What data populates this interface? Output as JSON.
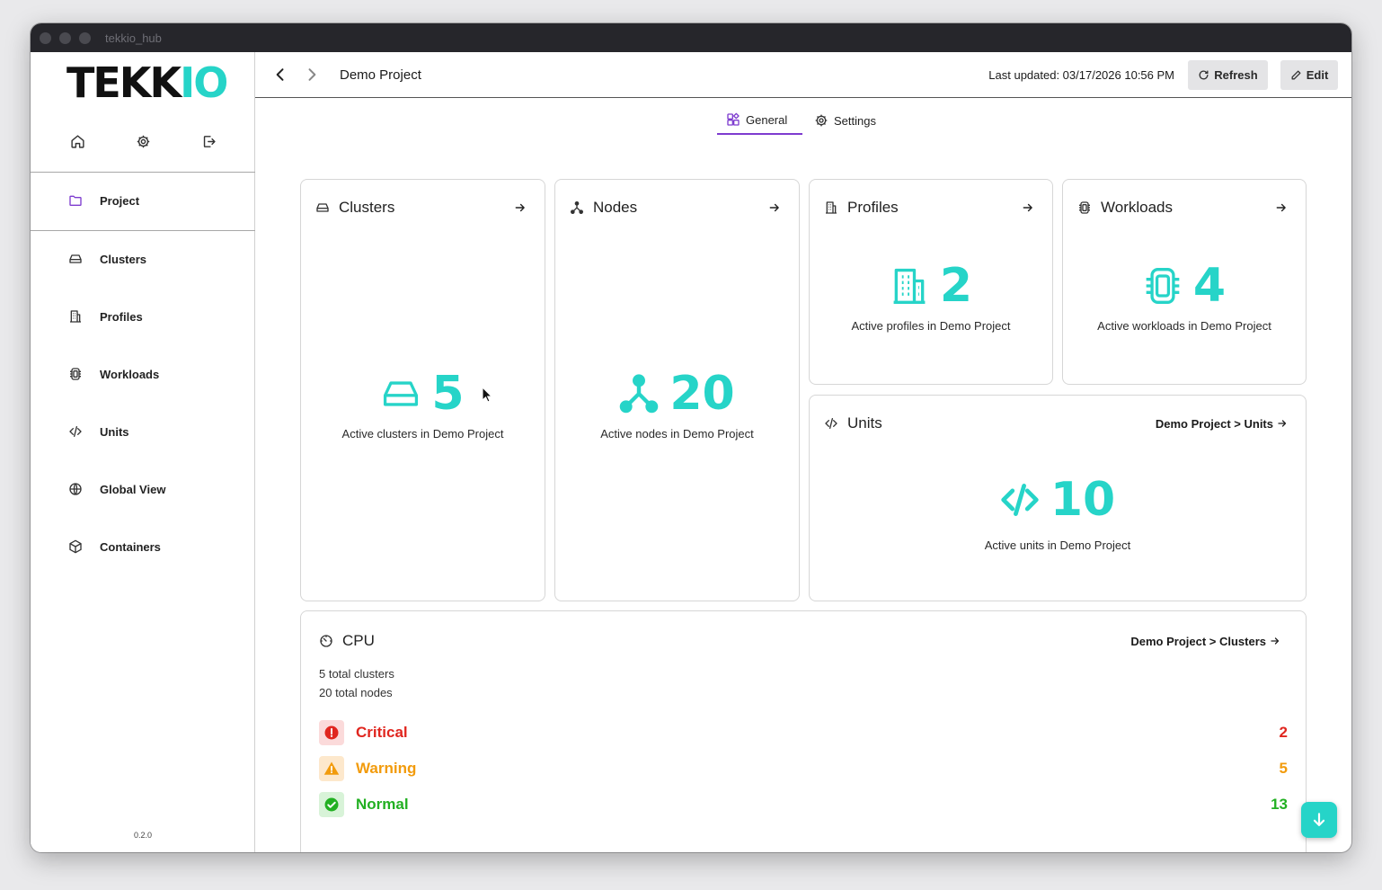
{
  "window": {
    "title": "tekkio_hub"
  },
  "sidebar": {
    "logo": {
      "dark": "TEKK",
      "teal": "IO"
    },
    "project_label": "Project",
    "items": [
      {
        "label": "Clusters",
        "icon": "hard-drive-icon"
      },
      {
        "label": "Profiles",
        "icon": "building-icon"
      },
      {
        "label": "Workloads",
        "icon": "cpu-chip-icon"
      },
      {
        "label": "Units",
        "icon": "code-icon"
      },
      {
        "label": "Global View",
        "icon": "globe-icon"
      },
      {
        "label": "Containers",
        "icon": "box-icon"
      }
    ],
    "version": "0.2.0"
  },
  "header": {
    "title": "Demo Project",
    "last_updated": "Last updated: 03/17/2026 10:56 PM",
    "refresh_label": "Refresh",
    "edit_label": "Edit"
  },
  "tabs": {
    "general": "General",
    "settings": "Settings"
  },
  "cards": {
    "clusters": {
      "title": "Clusters",
      "count": "5",
      "subtitle": "Active clusters in Demo Project"
    },
    "nodes": {
      "title": "Nodes",
      "count": "20",
      "subtitle": "Active nodes in Demo Project"
    },
    "profiles": {
      "title": "Profiles",
      "count": "2",
      "subtitle": "Active profiles in Demo Project"
    },
    "workloads": {
      "title": "Workloads",
      "count": "4",
      "subtitle": "Active workloads in Demo Project"
    },
    "units": {
      "title": "Units",
      "link": "Demo Project > Units",
      "count": "10",
      "subtitle": "Active units in Demo Project"
    }
  },
  "cpu": {
    "title": "CPU",
    "link": "Demo Project > Clusters",
    "total_clusters": "5 total clusters",
    "total_nodes": "20 total nodes",
    "statuses": [
      {
        "label": "Critical",
        "count": "2",
        "color": "#e0261f",
        "bg": "#fbdada"
      },
      {
        "label": "Warning",
        "count": "5",
        "color": "#f29b0c",
        "bg": "#fde8cc"
      },
      {
        "label": "Normal",
        "count": "13",
        "color": "#22b022",
        "bg": "#d8f3d8"
      }
    ]
  },
  "colors": {
    "accent": "#26d4c8",
    "tab_underline": "#7e3ccf"
  }
}
